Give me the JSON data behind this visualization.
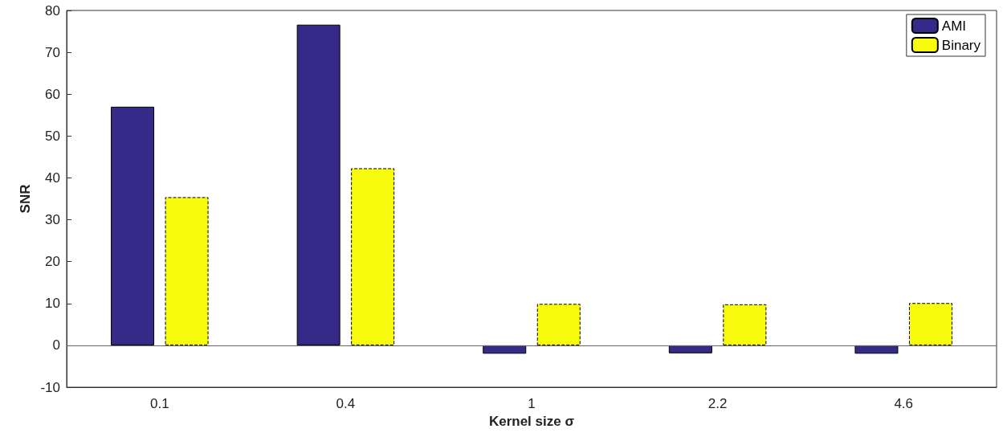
{
  "chart_data": {
    "type": "bar",
    "xlabel": "Kernel size σ",
    "ylabel": "SNR",
    "categories": [
      "0.1",
      "0.4",
      "1",
      "2.2",
      "4.6"
    ],
    "series": [
      {
        "name": "AMI",
        "color": "#352a87",
        "values": [
          57,
          76.6,
          -2,
          -1.9,
          -2
        ]
      },
      {
        "name": "Binary",
        "color": "#f9fb0e",
        "values": [
          35.4,
          42.3,
          9.9,
          9.8,
          10.1
        ],
        "line_style": "dashed"
      }
    ],
    "ylim": [
      -10,
      80
    ],
    "yticks": [
      -10,
      0,
      10,
      20,
      30,
      40,
      50,
      60,
      70,
      80
    ],
    "ref_lines": [
      {
        "axis": "y",
        "value": 0,
        "color": "#666666"
      }
    ],
    "grid": false,
    "legend": "top right"
  }
}
